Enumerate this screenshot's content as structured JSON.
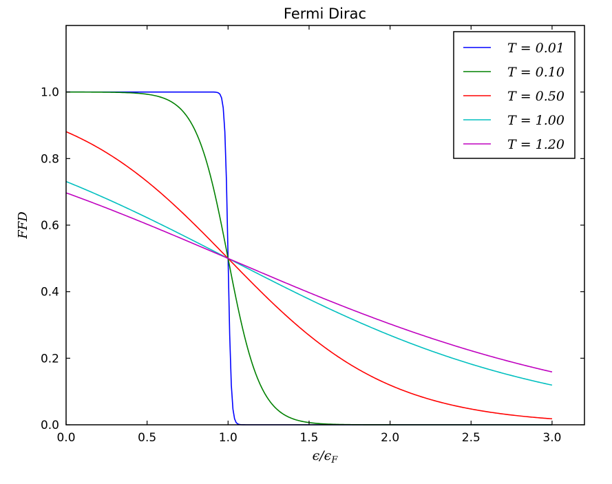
{
  "chart_data": {
    "type": "line",
    "title": "Fermi Dirac",
    "xlabel": "ε/ε_F",
    "xlabel_main": "ϵ/ϵ",
    "xlabel_sub": "F",
    "ylabel": "FFD",
    "xlim": [
      0,
      3.2
    ],
    "ylim": [
      0,
      1.2
    ],
    "xticks": [
      0,
      0.5,
      1.0,
      1.5,
      2.0,
      2.5,
      3.0
    ],
    "yticks": [
      0,
      0.2,
      0.4,
      0.6,
      0.8,
      1.0
    ],
    "xtick_labels": [
      "0.0",
      "0.5",
      "1.0",
      "1.5",
      "2.0",
      "2.5",
      "3.0"
    ],
    "ytick_labels": [
      "0.0",
      "0.2",
      "0.4",
      "0.6",
      "0.8",
      "1.0"
    ],
    "grid": false,
    "legend_position": "top-right",
    "x_domain": [
      0,
      3.0
    ],
    "samples": 301,
    "function": "1/(exp((x-1)/T)+1)",
    "series": [
      {
        "name": "T = 0.01",
        "label": "T = 0.01",
        "T": 0.01,
        "color": "#0000ff"
      },
      {
        "name": "T = 0.10",
        "label": "T = 0.10",
        "T": 0.1,
        "color": "#008000"
      },
      {
        "name": "T = 0.50",
        "label": "T = 0.50",
        "T": 0.5,
        "color": "#ff0000"
      },
      {
        "name": "T = 1.00",
        "label": "T = 1.00",
        "T": 1.0,
        "color": "#00bfbf"
      },
      {
        "name": "T = 1.20",
        "label": "T = 1.20",
        "T": 1.2,
        "color": "#bf00bf"
      }
    ]
  }
}
